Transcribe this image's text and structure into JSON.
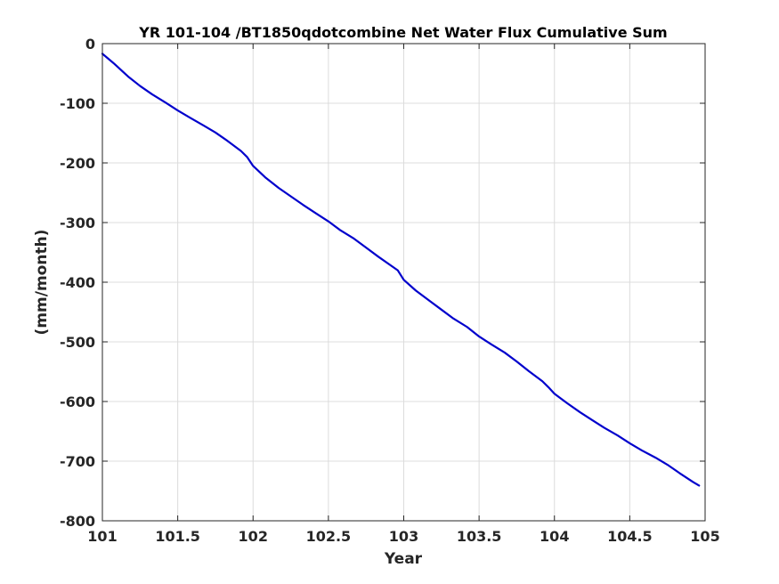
{
  "chart_data": {
    "type": "line",
    "title": "YR 101-104 /BT1850qdotcombine Net Water Flux Cumulative Sum",
    "xlabel": "Year",
    "ylabel": "(mm/month)",
    "xlim": [
      101,
      105
    ],
    "ylim": [
      -800,
      0
    ],
    "xticks": [
      "101",
      "101.5",
      "102",
      "102.5",
      "103",
      "103.5",
      "104",
      "104.5",
      "105"
    ],
    "xtick_values": [
      101,
      101.5,
      102,
      102.5,
      103,
      103.5,
      104,
      104.5,
      105
    ],
    "yticks": [
      "0",
      "-100",
      "-200",
      "-300",
      "-400",
      "-500",
      "-600",
      "-700",
      "-800"
    ],
    "ytick_values": [
      0,
      -100,
      -200,
      -300,
      -400,
      -500,
      -600,
      -700,
      -800
    ],
    "grid": true,
    "series": [
      {
        "color": "#0000cc",
        "x": [
          101.0,
          101.08,
          101.17,
          101.25,
          101.33,
          101.42,
          101.5,
          101.58,
          101.67,
          101.75,
          101.83,
          101.92,
          101.96,
          102.0,
          102.08,
          102.17,
          102.25,
          102.33,
          102.42,
          102.5,
          102.58,
          102.67,
          102.75,
          102.83,
          102.92,
          102.96,
          103.0,
          103.08,
          103.17,
          103.25,
          103.33,
          103.42,
          103.5,
          103.58,
          103.67,
          103.75,
          103.83,
          103.92,
          103.96,
          104.0,
          104.08,
          104.17,
          104.25,
          104.33,
          104.42,
          104.5,
          104.58,
          104.67,
          104.75,
          104.83,
          104.92,
          104.96
        ],
        "y": [
          -17,
          -34,
          -55,
          -71,
          -85,
          -99,
          -112,
          -124,
          -137,
          -149,
          -163,
          -180,
          -190,
          -205,
          -224,
          -242,
          -256,
          -270,
          -285,
          -298,
          -313,
          -327,
          -342,
          -357,
          -373,
          -380,
          -396,
          -414,
          -431,
          -446,
          -461,
          -475,
          -491,
          -504,
          -518,
          -533,
          -549,
          -566,
          -576,
          -587,
          -602,
          -618,
          -631,
          -644,
          -657,
          -670,
          -682,
          -694,
          -706,
          -720,
          -735,
          -741
        ]
      }
    ]
  }
}
